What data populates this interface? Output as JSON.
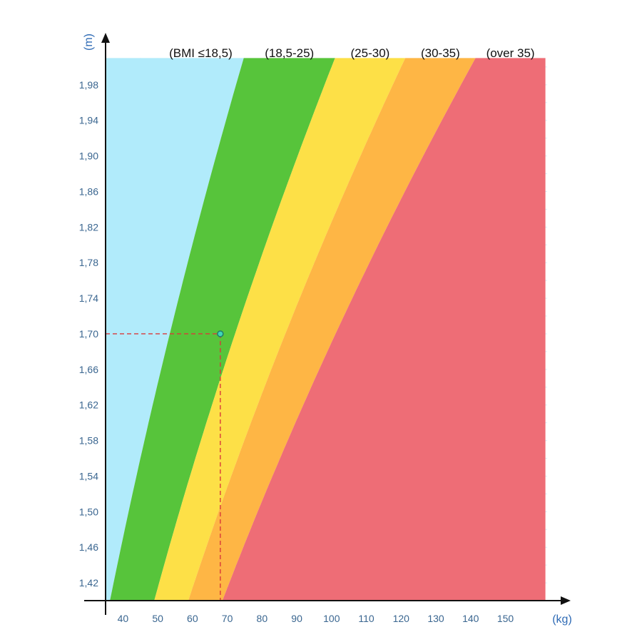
{
  "chart_data": {
    "type": "area",
    "title": "",
    "xlabel": "(kg)",
    "ylabel": "(m)",
    "x_ticks": [
      40,
      50,
      60,
      70,
      80,
      90,
      100,
      110,
      120,
      130,
      140,
      150
    ],
    "x_tick_labels": [
      "40",
      "50",
      "60",
      "70",
      "80",
      "90",
      "100",
      "110",
      "120",
      "130",
      "140",
      "150"
    ],
    "y_ticks": [
      1.42,
      1.46,
      1.5,
      1.54,
      1.58,
      1.62,
      1.66,
      1.7,
      1.74,
      1.78,
      1.82,
      1.86,
      1.9,
      1.94,
      1.98
    ],
    "y_tick_labels": [
      "1,42",
      "1,46",
      "1,50",
      "1,54",
      "1,58",
      "1,62",
      "1,66",
      "1,70",
      "1,74",
      "1,78",
      "1,82",
      "1,86",
      "1,90",
      "1,94",
      "1,98"
    ],
    "xlim": [
      35,
      162
    ],
    "ylim": [
      1.4,
      2.04
    ],
    "plot_x_max": 161.5,
    "grid": true,
    "bands": [
      {
        "label": "(BMI ≤18,5)",
        "bmi_min": 0,
        "bmi_max": 18.5,
        "color": "#b1ebfb"
      },
      {
        "label": "(18,5-25)",
        "bmi_min": 18.5,
        "bmi_max": 25,
        "color": "#57c43b"
      },
      {
        "label": "(25-30)",
        "bmi_min": 25,
        "bmi_max": 30,
        "color": "#fde047"
      },
      {
        "label": "(30-35)",
        "bmi_min": 30,
        "bmi_max": 35,
        "color": "#feb645"
      },
      {
        "label": "(over 35)",
        "bmi_min": 35,
        "bmi_max": null,
        "color": "#ee6d76"
      }
    ],
    "highlight_point": {
      "x": 68,
      "y": 1.7
    },
    "colors": {
      "grid": "#d6ecf8",
      "axis": "#111111",
      "guide": "#d93a3a",
      "point_fill": "#3fd6b8",
      "point_stroke": "#1d7d6d"
    }
  }
}
